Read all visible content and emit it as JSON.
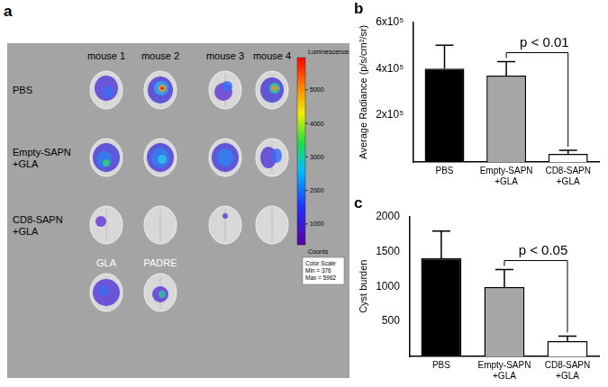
{
  "image_panel": {
    "title": "a",
    "columns": [
      "mouse 1",
      "mouse 2",
      "mouse 3",
      "mouse 4"
    ],
    "rows": [
      "PBS",
      "Empty-SAPN\n+GLA",
      "CD8-SAPN\n+GLA"
    ],
    "extra_labels": [
      "GLA",
      "PADRE"
    ],
    "colorbar": {
      "title": "Luminescence",
      "unit": "Counts",
      "min": 376,
      "max": 5962,
      "ticks": [
        1000,
        2000,
        3000,
        4000,
        5000
      ],
      "scale_title": "Color Scale",
      "min_label": "Min = 376",
      "max_label": "Max = 5962"
    }
  },
  "chart_data": [
    {
      "type": "bar",
      "title": "b",
      "categories": [
        "PBS",
        "Empty-SAPN\n+GLA",
        "CD8-SAPN\n+GLA"
      ],
      "values": [
        400000,
        370000,
        35000
      ],
      "errors": [
        100000,
        60000,
        15000
      ],
      "colors": [
        "#000000",
        "#a6a6a6",
        "#ffffff"
      ],
      "y_label": "Average Radiance (p/s/cm²/sr)",
      "ylim": [
        0,
        600000
      ],
      "yticks": [
        {
          "value": 200000,
          "label": "2x10⁵"
        },
        {
          "value": 400000,
          "label": "4x10⁵"
        },
        {
          "value": 600000,
          "label": "6x10⁵"
        }
      ],
      "grid": false,
      "annotations": [
        {
          "text": "p < 0.01",
          "between": [
            "Empty-SAPN\n+GLA",
            "CD8-SAPN\n+GLA"
          ]
        }
      ]
    },
    {
      "type": "bar",
      "title": "c",
      "categories": [
        "PBS",
        "Empty-SAPN\n+GLA",
        "CD8-SAPN\n+GLA"
      ],
      "values": [
        1400,
        990,
        220
      ],
      "errors": [
        390,
        250,
        70
      ],
      "colors": [
        "#000000",
        "#a6a6a6",
        "#ffffff"
      ],
      "y_label": "Cyst burden",
      "ylim": [
        0,
        2000
      ],
      "yticks": [
        500,
        1000,
        1500,
        2000
      ],
      "grid": false,
      "annotations": [
        {
          "text": "p < 0.05",
          "between": [
            "Empty-SAPN\n+GLA",
            "CD8-SAPN\n+GLA"
          ]
        }
      ]
    }
  ]
}
